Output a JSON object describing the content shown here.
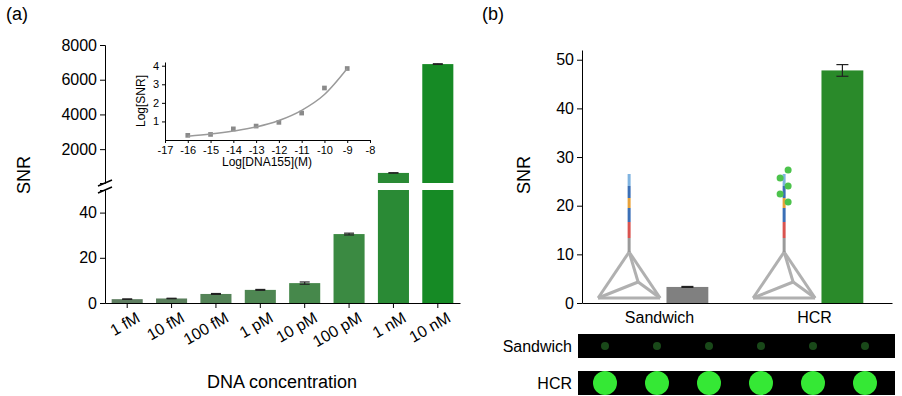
{
  "chart_data": [
    {
      "label": "(a)",
      "type": "bar",
      "categories": [
        "1 fM",
        "10 fM",
        "100 fM",
        "1 pM",
        "10 pM",
        "100 pM",
        "1 nM",
        "10 nM"
      ],
      "values": [
        1.7,
        2.0,
        4.0,
        5.8,
        8.8,
        30.5,
        630,
        6900
      ],
      "errors": [
        0.1,
        0.1,
        0.2,
        0.2,
        0.5,
        0.4,
        10,
        20
      ],
      "colors": [
        "#5e7d60",
        "#5a7f5c",
        "#548357",
        "#4e8652",
        "#46884b",
        "#3b8a42",
        "#2a8a35",
        "#168a25"
      ],
      "xlabel": "DNA concentration",
      "ylabel": "SNR",
      "ylim": [
        0,
        8000
      ],
      "ybreak": 50,
      "yticks": [
        0,
        20,
        40,
        2000,
        4000,
        6000,
        8000
      ]
    },
    {
      "type": "scatter",
      "xlabel": "Log[DNA155](M)",
      "ylabel": "Log[SNR]",
      "x": [
        -16,
        -15,
        -14,
        -13,
        -12,
        -11,
        -10,
        -9
      ],
      "series": [
        {
          "type": "scatter",
          "marker": "square",
          "color": "#8a8a8a",
          "values": [
            0.25,
            0.3,
            0.6,
            0.75,
            0.95,
            1.45,
            2.8,
            3.85
          ]
        },
        {
          "type": "line",
          "color": "#9a9a9a",
          "values": [
            0.2,
            0.32,
            0.48,
            0.7,
            1.05,
            1.6,
            2.45,
            3.85
          ]
        }
      ],
      "xlim": [
        -17,
        -8
      ],
      "xticks": [
        -17,
        -16,
        -15,
        -14,
        -13,
        -12,
        -11,
        -10,
        -9,
        -8
      ],
      "ylim": [
        0,
        4.2
      ],
      "yticks": [
        1,
        2,
        3,
        4
      ]
    },
    {
      "label": "(b)",
      "type": "bar",
      "categories": [
        "Sandwich",
        "HCR"
      ],
      "values": [
        3.3,
        47.8
      ],
      "errors": [
        0.1,
        1.2
      ],
      "colors": [
        "#808080",
        "#2a8a2a"
      ],
      "ylabel": "SNR",
      "ylim": [
        0,
        52
      ],
      "yticks": [
        0,
        10,
        20,
        30,
        40,
        50
      ],
      "image_rows": [
        "Sandwich",
        "HCR"
      ]
    }
  ]
}
